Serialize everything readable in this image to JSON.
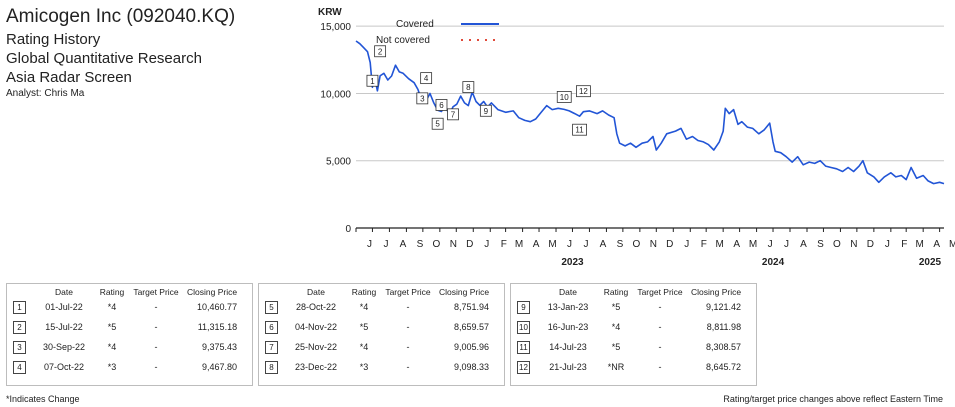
{
  "header": {
    "title": "Amicogen Inc (092040.KQ)",
    "line1": "Rating History",
    "line2": "Global Quantitative Research",
    "line3": "Asia Radar Screen",
    "analyst": "Analyst: Chris Ma"
  },
  "chart_data": {
    "type": "line",
    "ylabel": "KRW",
    "ylim": [
      0,
      16500
    ],
    "yticks": [
      0,
      5000,
      10000,
      15000
    ],
    "ytick_labels": [
      "0",
      "5,000",
      "10,000",
      "15,000"
    ],
    "x_range": [
      "2022-06-01",
      "2025-05-09"
    ],
    "month_ticks": [
      "J",
      "J",
      "A",
      "S",
      "O",
      "N",
      "D",
      "J",
      "F",
      "M",
      "A",
      "M",
      "J",
      "J",
      "A",
      "S",
      "O",
      "N",
      "D",
      "J",
      "F",
      "M",
      "A",
      "M",
      "J",
      "J",
      "A",
      "S",
      "O",
      "N",
      "D",
      "J",
      "F",
      "M",
      "A",
      "M"
    ],
    "year_labels": [
      {
        "label": "2023",
        "date": "2023-07-01"
      },
      {
        "label": "2024",
        "date": "2024-07-01"
      },
      {
        "label": "2025",
        "date": "2025-07-01"
      }
    ],
    "legend": {
      "position": "top",
      "covered": "Covered",
      "not_covered": "Not covered"
    },
    "colors": {
      "covered": "#2255d6",
      "not_covered": "#e04a3a",
      "grid": "#c8c8c8"
    },
    "series": [
      {
        "name": "Covered",
        "points": [
          [
            "2022-06-01",
            13900
          ],
          [
            "2022-06-08",
            13700
          ],
          [
            "2022-06-15",
            13400
          ],
          [
            "2022-06-22",
            13100
          ],
          [
            "2022-06-27",
            12300
          ],
          [
            "2022-07-01",
            10460
          ],
          [
            "2022-07-05",
            11200
          ],
          [
            "2022-07-10",
            10200
          ],
          [
            "2022-07-15",
            11315
          ],
          [
            "2022-07-22",
            11500
          ],
          [
            "2022-07-29",
            11000
          ],
          [
            "2022-08-05",
            11300
          ],
          [
            "2022-08-12",
            12100
          ],
          [
            "2022-08-19",
            11600
          ],
          [
            "2022-08-26",
            11500
          ],
          [
            "2022-09-05",
            11100
          ],
          [
            "2022-09-15",
            10800
          ],
          [
            "2022-09-22",
            10300
          ],
          [
            "2022-09-30",
            9375
          ],
          [
            "2022-10-07",
            9468
          ],
          [
            "2022-10-14",
            10000
          ],
          [
            "2022-10-21",
            9300
          ],
          [
            "2022-10-28",
            8752
          ],
          [
            "2022-11-04",
            8660
          ],
          [
            "2022-11-11",
            9100
          ],
          [
            "2022-11-18",
            8400
          ],
          [
            "2022-11-25",
            9006
          ],
          [
            "2022-12-02",
            9200
          ],
          [
            "2022-12-09",
            9800
          ],
          [
            "2022-12-16",
            9300
          ],
          [
            "2022-12-23",
            9098
          ],
          [
            "2022-12-30",
            10100
          ],
          [
            "2023-01-06",
            9400
          ],
          [
            "2023-01-13",
            9121
          ],
          [
            "2023-01-20",
            9400
          ],
          [
            "2023-01-27",
            9000
          ],
          [
            "2023-02-03",
            9300
          ],
          [
            "2023-02-15",
            8800
          ],
          [
            "2023-03-01",
            8600
          ],
          [
            "2023-03-15",
            8700
          ],
          [
            "2023-03-25",
            8200
          ],
          [
            "2023-04-05",
            8000
          ],
          [
            "2023-04-15",
            7900
          ],
          [
            "2023-04-25",
            8100
          ],
          [
            "2023-05-05",
            8600
          ],
          [
            "2023-05-15",
            9100
          ],
          [
            "2023-05-25",
            8800
          ],
          [
            "2023-06-05",
            8900
          ],
          [
            "2023-06-16",
            8812
          ],
          [
            "2023-06-25",
            8700
          ],
          [
            "2023-07-05",
            8500
          ],
          [
            "2023-07-14",
            8309
          ],
          [
            "2023-07-21",
            8646
          ],
          [
            "2023-08-01",
            8700
          ],
          [
            "2023-08-15",
            8500
          ],
          [
            "2023-08-25",
            8700
          ],
          [
            "2023-09-05",
            8400
          ],
          [
            "2023-09-15",
            8200
          ],
          [
            "2023-09-20",
            7000
          ],
          [
            "2023-09-25",
            6300
          ],
          [
            "2023-10-05",
            6100
          ],
          [
            "2023-10-15",
            6300
          ],
          [
            "2023-10-25",
            6000
          ],
          [
            "2023-11-05",
            6300
          ],
          [
            "2023-11-15",
            6400
          ],
          [
            "2023-11-25",
            6800
          ],
          [
            "2023-12-01",
            5800
          ],
          [
            "2023-12-10",
            6300
          ],
          [
            "2023-12-20",
            7000
          ],
          [
            "2024-01-05",
            7200
          ],
          [
            "2024-01-15",
            7400
          ],
          [
            "2024-01-25",
            6600
          ],
          [
            "2024-02-05",
            6800
          ],
          [
            "2024-02-15",
            6500
          ],
          [
            "2024-02-25",
            6400
          ],
          [
            "2024-03-05",
            6200
          ],
          [
            "2024-03-15",
            5800
          ],
          [
            "2024-03-25",
            6400
          ],
          [
            "2024-04-01",
            7200
          ],
          [
            "2024-04-05",
            8900
          ],
          [
            "2024-04-12",
            8500
          ],
          [
            "2024-04-20",
            8800
          ],
          [
            "2024-04-28",
            7700
          ],
          [
            "2024-05-05",
            7900
          ],
          [
            "2024-05-15",
            7500
          ],
          [
            "2024-05-25",
            7400
          ],
          [
            "2024-06-05",
            7000
          ],
          [
            "2024-06-15",
            7300
          ],
          [
            "2024-06-25",
            7800
          ],
          [
            "2024-07-01",
            6400
          ],
          [
            "2024-07-05",
            5700
          ],
          [
            "2024-07-15",
            5600
          ],
          [
            "2024-07-25",
            5300
          ],
          [
            "2024-08-05",
            4900
          ],
          [
            "2024-08-15",
            5300
          ],
          [
            "2024-08-25",
            4700
          ],
          [
            "2024-09-05",
            4900
          ],
          [
            "2024-09-15",
            4800
          ],
          [
            "2024-09-25",
            5000
          ],
          [
            "2024-10-05",
            4600
          ],
          [
            "2024-10-15",
            4500
          ],
          [
            "2024-10-25",
            4400
          ],
          [
            "2024-11-05",
            4200
          ],
          [
            "2024-11-15",
            4500
          ],
          [
            "2024-11-25",
            4200
          ],
          [
            "2024-12-05",
            4600
          ],
          [
            "2024-12-12",
            5000
          ],
          [
            "2024-12-20",
            4100
          ],
          [
            "2025-01-01",
            3800
          ],
          [
            "2025-01-10",
            3400
          ],
          [
            "2025-01-20",
            3800
          ],
          [
            "2025-02-01",
            4100
          ],
          [
            "2025-02-10",
            3800
          ],
          [
            "2025-02-20",
            3900
          ],
          [
            "2025-03-01",
            3600
          ],
          [
            "2025-03-10",
            4500
          ],
          [
            "2025-03-20",
            3700
          ],
          [
            "2025-04-01",
            3900
          ],
          [
            "2025-04-10",
            3500
          ],
          [
            "2025-04-20",
            3300
          ],
          [
            "2025-05-01",
            3400
          ],
          [
            "2025-05-09",
            3300
          ]
        ]
      }
    ],
    "markers": [
      {
        "num": "1",
        "date": "2022-07-01",
        "value": 10460.77
      },
      {
        "num": "2",
        "date": "2022-07-15",
        "value": 11315.18
      },
      {
        "num": "3",
        "date": "2022-09-30",
        "value": 9375.43
      },
      {
        "num": "4",
        "date": "2022-10-07",
        "value": 9467.8
      },
      {
        "num": "5",
        "date": "2022-10-28",
        "value": 8751.94
      },
      {
        "num": "6",
        "date": "2022-11-04",
        "value": 8659.57
      },
      {
        "num": "7",
        "date": "2022-11-25",
        "value": 9005.96
      },
      {
        "num": "8",
        "date": "2022-12-23",
        "value": 9098.33
      },
      {
        "num": "9",
        "date": "2023-01-13",
        "value": 9121.42
      },
      {
        "num": "10",
        "date": "2023-06-16",
        "value": 8811.98
      },
      {
        "num": "11",
        "date": "2023-07-14",
        "value": 8308.57
      },
      {
        "num": "12",
        "date": "2023-07-21",
        "value": 8645.72
      }
    ]
  },
  "table": {
    "headers": [
      "Date",
      "Rating",
      "Target Price",
      "Closing Price"
    ],
    "groups": [
      [
        {
          "num": "1",
          "date": "01-Jul-22",
          "rating": "*4",
          "target": "-",
          "close": "10,460.77"
        },
        {
          "num": "2",
          "date": "15-Jul-22",
          "rating": "*5",
          "target": "-",
          "close": "11,315.18"
        },
        {
          "num": "3",
          "date": "30-Sep-22",
          "rating": "*4",
          "target": "-",
          "close": "9,375.43"
        },
        {
          "num": "4",
          "date": "07-Oct-22",
          "rating": "*3",
          "target": "-",
          "close": "9,467.80"
        }
      ],
      [
        {
          "num": "5",
          "date": "28-Oct-22",
          "rating": "*4",
          "target": "-",
          "close": "8,751.94"
        },
        {
          "num": "6",
          "date": "04-Nov-22",
          "rating": "*5",
          "target": "-",
          "close": "8,659.57"
        },
        {
          "num": "7",
          "date": "25-Nov-22",
          "rating": "*4",
          "target": "-",
          "close": "9,005.96"
        },
        {
          "num": "8",
          "date": "23-Dec-22",
          "rating": "*3",
          "target": "-",
          "close": "9,098.33"
        }
      ],
      [
        {
          "num": "9",
          "date": "13-Jan-23",
          "rating": "*5",
          "target": "-",
          "close": "9,121.42"
        },
        {
          "num": "10",
          "date": "16-Jun-23",
          "rating": "*4",
          "target": "-",
          "close": "8,811.98"
        },
        {
          "num": "11",
          "date": "14-Jul-23",
          "rating": "*5",
          "target": "-",
          "close": "8,308.57"
        },
        {
          "num": "12",
          "date": "21-Jul-23",
          "rating": "*NR",
          "target": "-",
          "close": "8,645.72"
        }
      ]
    ]
  },
  "footer": {
    "left": "*Indicates Change",
    "right": "Rating/target price changes above reflect Eastern Time"
  }
}
